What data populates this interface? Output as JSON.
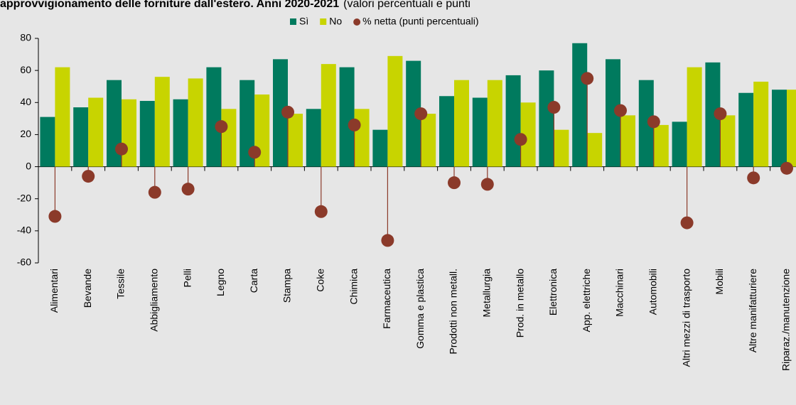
{
  "chart_data": {
    "type": "bar",
    "title": "approvvigionamento delle forniture dall'estero. Anni 2020-2021",
    "subtitle": "(valori percentuali e punti",
    "categories": [
      "Alimentari",
      "Bevande",
      "Tessile",
      "Abbigliamento",
      "Pelli",
      "Legno",
      "Carta",
      "Stampa",
      "Coke",
      "Chimica",
      "Farmaceutica",
      "Gomma e plastica",
      "Prodotti non metall.",
      "Metallurgia",
      "Prod. in metallo",
      "Elettronica",
      "App. elettriche",
      "Macchinari",
      "Automobili",
      "Altri mezzi di trasporto",
      "Mobili",
      "Altre manifatturiere",
      "Riparaz./manutenzione"
    ],
    "series": [
      {
        "name": "Sì",
        "color": "#007a5e",
        "style": "bar",
        "values": [
          31,
          37,
          54,
          41,
          42,
          62,
          54,
          67,
          36,
          62,
          23,
          66,
          44,
          43,
          57,
          60,
          77,
          67,
          54,
          28,
          65,
          46,
          48
        ]
      },
      {
        "name": "No",
        "color": "#c8d400",
        "style": "bar",
        "values": [
          62,
          43,
          42,
          56,
          55,
          36,
          45,
          33,
          64,
          36,
          69,
          33,
          54,
          54,
          40,
          23,
          21,
          32,
          26,
          62,
          32,
          53,
          48
        ]
      },
      {
        "name": "% netta (punti percentuali)",
        "color": "#8b3a2a",
        "style": "lollipop",
        "values": [
          -31,
          -6,
          11,
          -16,
          -14,
          25,
          9,
          34,
          -28,
          26,
          -46,
          33,
          -10,
          -11,
          17,
          37,
          55,
          35,
          28,
          -35,
          33,
          -7,
          -1
        ]
      }
    ],
    "ylim": [
      -60,
      80
    ],
    "yticks": [
      -60,
      -40,
      -20,
      0,
      20,
      40,
      60,
      80
    ],
    "grid": false
  }
}
